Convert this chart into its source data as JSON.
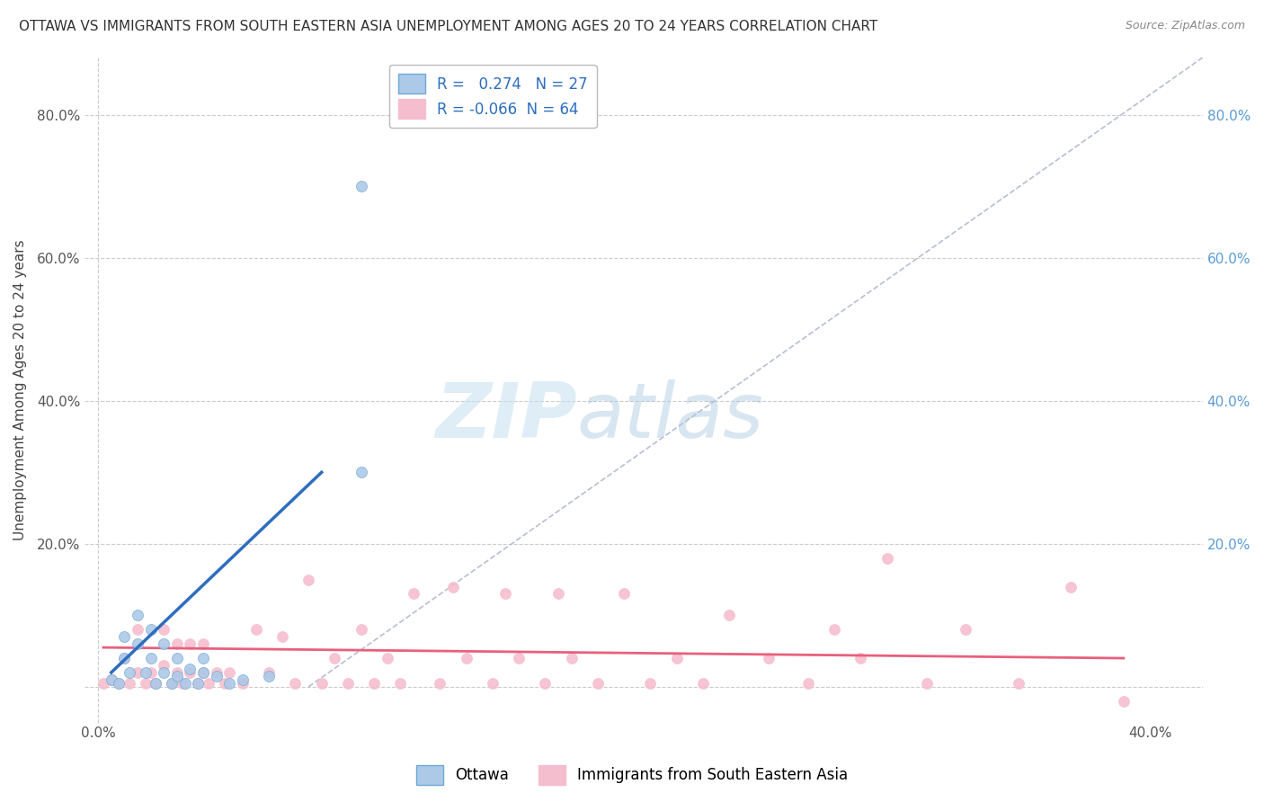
{
  "title": "OTTAWA VS IMMIGRANTS FROM SOUTH EASTERN ASIA UNEMPLOYMENT AMONG AGES 20 TO 24 YEARS CORRELATION CHART",
  "source": "Source: ZipAtlas.com",
  "ylabel": "Unemployment Among Ages 20 to 24 years",
  "xlim": [
    -0.005,
    0.42
  ],
  "ylim": [
    -0.05,
    0.88
  ],
  "yticks": [
    0.0,
    0.2,
    0.4,
    0.6,
    0.8
  ],
  "xticks": [
    0.0,
    0.1,
    0.2,
    0.3,
    0.4
  ],
  "ytick_labels_left": [
    "",
    "20.0%",
    "40.0%",
    "60.0%",
    "80.0%"
  ],
  "ytick_labels_right": [
    "",
    "20.0%",
    "40.0%",
    "60.0%",
    "80.0%"
  ],
  "xtick_labels": [
    "0.0%",
    "",
    "",
    "",
    "40.0%"
  ],
  "ottawa": {
    "name": "Ottawa",
    "R": 0.274,
    "N": 27,
    "color": "#adc9e8",
    "edge_color": "#6fa8d5",
    "line_color": "#2e6dbe",
    "x": [
      0.005,
      0.008,
      0.01,
      0.01,
      0.012,
      0.015,
      0.015,
      0.018,
      0.02,
      0.02,
      0.022,
      0.025,
      0.025,
      0.028,
      0.03,
      0.03,
      0.033,
      0.035,
      0.038,
      0.04,
      0.04,
      0.045,
      0.05,
      0.055,
      0.065,
      0.1,
      0.1
    ],
    "y": [
      0.01,
      0.005,
      0.04,
      0.07,
      0.02,
      0.06,
      0.1,
      0.02,
      0.04,
      0.08,
      0.005,
      0.02,
      0.06,
      0.005,
      0.04,
      0.015,
      0.005,
      0.025,
      0.005,
      0.02,
      0.04,
      0.015,
      0.005,
      0.01,
      0.015,
      0.3,
      0.7
    ],
    "trend_x": [
      0.005,
      0.085
    ],
    "trend_y": [
      0.02,
      0.3
    ]
  },
  "immigrants": {
    "name": "Immigrants from South Eastern Asia",
    "R": -0.066,
    "N": 64,
    "color": "#f5bece",
    "edge_color": "#f5bece",
    "line_color": "#e8607e",
    "x": [
      0.002,
      0.005,
      0.008,
      0.01,
      0.012,
      0.015,
      0.015,
      0.018,
      0.02,
      0.022,
      0.025,
      0.025,
      0.028,
      0.03,
      0.03,
      0.032,
      0.035,
      0.035,
      0.038,
      0.04,
      0.04,
      0.042,
      0.045,
      0.048,
      0.05,
      0.055,
      0.06,
      0.065,
      0.07,
      0.075,
      0.08,
      0.085,
      0.09,
      0.095,
      0.1,
      0.105,
      0.11,
      0.115,
      0.12,
      0.13,
      0.135,
      0.14,
      0.15,
      0.155,
      0.16,
      0.17,
      0.175,
      0.18,
      0.19,
      0.2,
      0.21,
      0.22,
      0.23,
      0.24,
      0.255,
      0.27,
      0.28,
      0.29,
      0.3,
      0.315,
      0.33,
      0.35,
      0.37,
      0.39
    ],
    "y": [
      0.005,
      0.01,
      0.005,
      0.04,
      0.005,
      0.02,
      0.08,
      0.005,
      0.02,
      0.005,
      0.03,
      0.08,
      0.005,
      0.02,
      0.06,
      0.005,
      0.02,
      0.06,
      0.005,
      0.02,
      0.06,
      0.005,
      0.02,
      0.005,
      0.02,
      0.005,
      0.08,
      0.02,
      0.07,
      0.005,
      0.15,
      0.005,
      0.04,
      0.005,
      0.08,
      0.005,
      0.04,
      0.005,
      0.13,
      0.005,
      0.14,
      0.04,
      0.005,
      0.13,
      0.04,
      0.005,
      0.13,
      0.04,
      0.005,
      0.13,
      0.005,
      0.04,
      0.005,
      0.1,
      0.04,
      0.005,
      0.08,
      0.04,
      0.18,
      0.005,
      0.08,
      0.005,
      0.14,
      -0.02
    ],
    "trend_x": [
      0.002,
      0.39
    ],
    "trend_y": [
      0.055,
      0.04
    ]
  },
  "watermark_zip": "ZIP",
  "watermark_atlas": "atlas",
  "background_color": "#ffffff",
  "grid_color": "#cccccc",
  "title_fontsize": 11,
  "axis_label_fontsize": 11,
  "tick_fontsize": 11,
  "legend_color": "#2e6dbe",
  "dashed_line_color": "#b0b8cc"
}
